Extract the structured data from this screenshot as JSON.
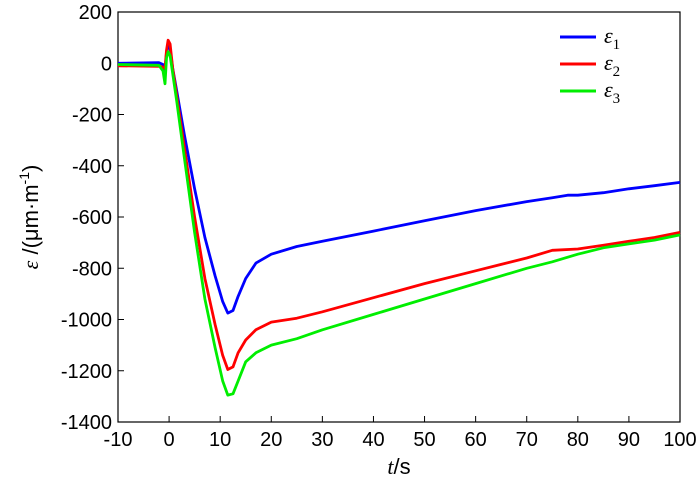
{
  "chart_data": {
    "type": "line",
    "ylabel": {
      "symbol": "ε",
      "unit": " /(μm·m",
      "unit_exp": "-1",
      "unit_close": ")"
    },
    "xlabel": {
      "symbol": "t",
      "unit": "/s"
    },
    "xlim": [
      -10,
      100
    ],
    "ylim": [
      -1400,
      200
    ],
    "xticks": [
      -10,
      0,
      10,
      20,
      30,
      40,
      50,
      60,
      70,
      80,
      90,
      100
    ],
    "yticks": [
      200,
      0,
      -200,
      -400,
      -600,
      -800,
      -1000,
      -1200,
      -1400
    ],
    "grid": false,
    "legend_position": "top-right",
    "series": [
      {
        "name": "ε",
        "sub": "1",
        "color": "#0000ff",
        "points": [
          [
            -10,
            0
          ],
          [
            -2,
            2
          ],
          [
            -1.2,
            -5
          ],
          [
            -0.8,
            -25
          ],
          [
            -0.5,
            40
          ],
          [
            -0.2,
            75
          ],
          [
            0.2,
            55
          ],
          [
            0.7,
            -20
          ],
          [
            1.5,
            -110
          ],
          [
            3,
            -280
          ],
          [
            5,
            -490
          ],
          [
            7,
            -680
          ],
          [
            9,
            -830
          ],
          [
            10.5,
            -930
          ],
          [
            11.5,
            -975
          ],
          [
            12.5,
            -965
          ],
          [
            13.5,
            -910
          ],
          [
            15,
            -840
          ],
          [
            17,
            -780
          ],
          [
            20,
            -745
          ],
          [
            25,
            -715
          ],
          [
            30,
            -695
          ],
          [
            40,
            -655
          ],
          [
            50,
            -615
          ],
          [
            60,
            -575
          ],
          [
            70,
            -540
          ],
          [
            75,
            -525
          ],
          [
            78,
            -515
          ],
          [
            80,
            -515
          ],
          [
            85,
            -505
          ],
          [
            90,
            -490
          ],
          [
            95,
            -478
          ],
          [
            100,
            -465
          ]
        ]
      },
      {
        "name": "ε",
        "sub": "2",
        "color": "#ff0000",
        "points": [
          [
            -10,
            -10
          ],
          [
            -2,
            -12
          ],
          [
            -1.2,
            -15
          ],
          [
            -0.8,
            -20
          ],
          [
            -0.5,
            50
          ],
          [
            -0.2,
            90
          ],
          [
            0.2,
            75
          ],
          [
            0.7,
            -20
          ],
          [
            1.5,
            -130
          ],
          [
            3,
            -330
          ],
          [
            5,
            -600
          ],
          [
            7,
            -840
          ],
          [
            9,
            -1020
          ],
          [
            10.5,
            -1140
          ],
          [
            11.5,
            -1195
          ],
          [
            12.5,
            -1185
          ],
          [
            13.5,
            -1130
          ],
          [
            15,
            -1080
          ],
          [
            17,
            -1040
          ],
          [
            20,
            -1010
          ],
          [
            25,
            -995
          ],
          [
            30,
            -970
          ],
          [
            40,
            -915
          ],
          [
            50,
            -860
          ],
          [
            60,
            -810
          ],
          [
            65,
            -785
          ],
          [
            70,
            -760
          ],
          [
            75,
            -730
          ],
          [
            80,
            -725
          ],
          [
            85,
            -710
          ],
          [
            90,
            -695
          ],
          [
            95,
            -680
          ],
          [
            100,
            -660
          ]
        ]
      },
      {
        "name": "ε",
        "sub": "3",
        "color": "#00ee00",
        "points": [
          [
            -10,
            -5
          ],
          [
            -2,
            -8
          ],
          [
            -1.2,
            -30
          ],
          [
            -0.8,
            -80
          ],
          [
            -0.5,
            20
          ],
          [
            -0.2,
            45
          ],
          [
            0.2,
            30
          ],
          [
            0.7,
            -40
          ],
          [
            1.5,
            -150
          ],
          [
            3,
            -370
          ],
          [
            5,
            -660
          ],
          [
            7,
            -920
          ],
          [
            9,
            -1110
          ],
          [
            10.5,
            -1240
          ],
          [
            11.5,
            -1295
          ],
          [
            12.5,
            -1290
          ],
          [
            13.5,
            -1240
          ],
          [
            15,
            -1165
          ],
          [
            17,
            -1130
          ],
          [
            20,
            -1100
          ],
          [
            25,
            -1075
          ],
          [
            30,
            -1040
          ],
          [
            40,
            -980
          ],
          [
            50,
            -920
          ],
          [
            60,
            -860
          ],
          [
            70,
            -800
          ],
          [
            75,
            -775
          ],
          [
            80,
            -745
          ],
          [
            85,
            -720
          ],
          [
            90,
            -705
          ],
          [
            95,
            -690
          ],
          [
            100,
            -670
          ]
        ]
      }
    ]
  }
}
